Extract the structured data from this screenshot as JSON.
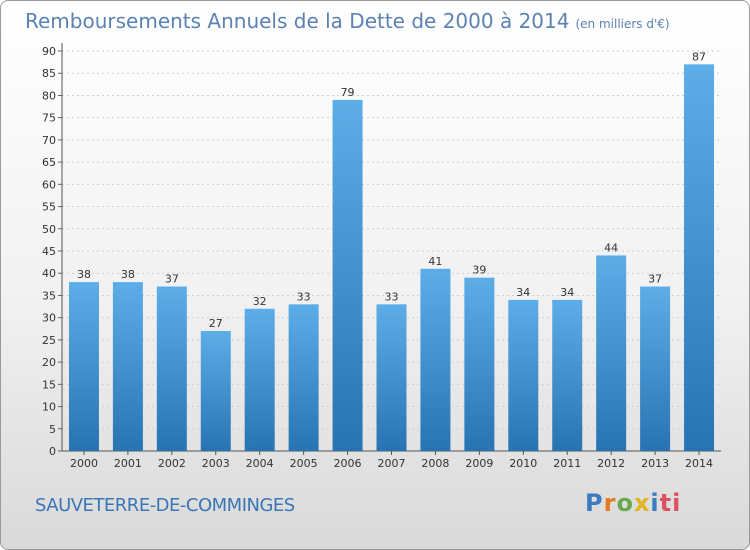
{
  "header": {
    "title": "Remboursements Annuels de la Dette de 2000 à 2014",
    "subtitle": "(en milliers d'€)"
  },
  "footer": {
    "commune": "SAUVETERRE-DE-COMMINGES",
    "logo_letters": [
      "P",
      "r",
      "o",
      "x",
      "i",
      "t",
      "i"
    ]
  },
  "colors": {
    "bar_light": "#5dade8",
    "bar_dark": "#2874b2",
    "title": "#5b82b3"
  },
  "chart_data": {
    "type": "bar",
    "title": "Remboursements Annuels de la Dette de 2000 à 2014",
    "subtitle": "(en milliers d'€)",
    "categories": [
      "2000",
      "2001",
      "2002",
      "2003",
      "2004",
      "2005",
      "2006",
      "2007",
      "2008",
      "2009",
      "2010",
      "2011",
      "2012",
      "2013",
      "2014"
    ],
    "values": [
      38,
      38,
      37,
      27,
      32,
      33,
      79,
      33,
      41,
      39,
      34,
      34,
      44,
      37,
      87
    ],
    "ylim": [
      0,
      90
    ],
    "yticks": [
      0,
      5,
      10,
      15,
      20,
      25,
      30,
      35,
      40,
      45,
      50,
      55,
      60,
      65,
      70,
      75,
      80,
      85,
      90
    ],
    "grid": true,
    "xlabel": "",
    "ylabel": ""
  }
}
